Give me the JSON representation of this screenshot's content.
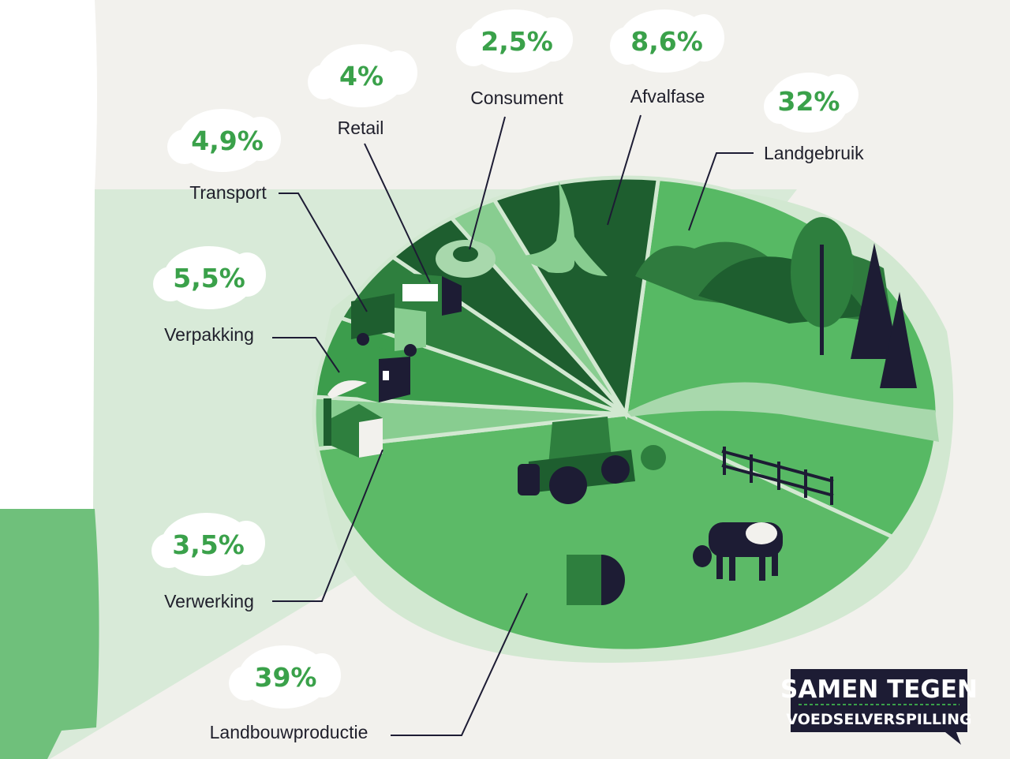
{
  "chart_data": {
    "type": "pie",
    "categories": [
      "Landgebruik",
      "Landbouwproductie",
      "Verwerking",
      "Verpakking",
      "Transport",
      "Retail",
      "Consument",
      "Afvalfase"
    ],
    "values": [
      32,
      39,
      3.5,
      5.5,
      4.9,
      4,
      2.5,
      8.6
    ],
    "value_labels": [
      "32%",
      "39%",
      "3,5%",
      "5,5%",
      "4,9%",
      "4%",
      "2,5%",
      "8,6%"
    ],
    "colors": [
      "#57b964",
      "#5cba67",
      "#88cd90",
      "#3c9d4c",
      "#2e7f3e",
      "#1e5e2f",
      "#88cd90",
      "#1e5e2f"
    ]
  },
  "logo": {
    "line1": "SAMEN TEGEN",
    "line2": "VOEDSELVERSPILLING",
    "bg": "#1d1c34"
  },
  "colors": {
    "background": "#f2f1ed",
    "accent_green": "#3aa14a",
    "dark_navy": "#1d1c34"
  }
}
